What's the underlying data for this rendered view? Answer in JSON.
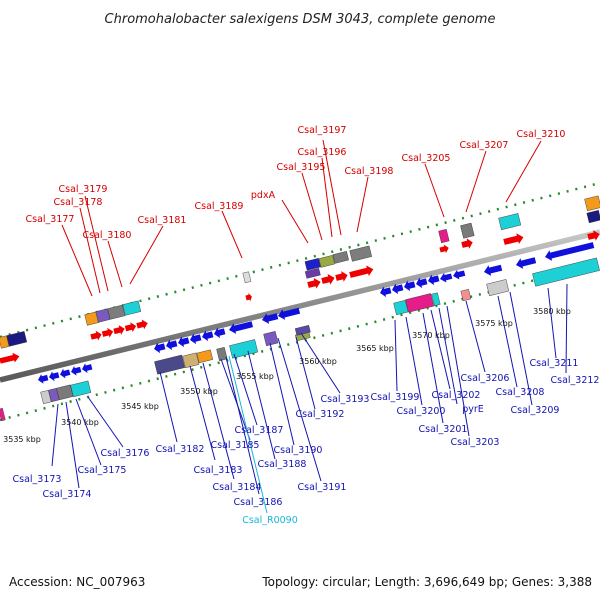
{
  "title": "Chromohalobacter salexigens DSM 3043, complete genome",
  "accession": "Accession: NC_007963",
  "summary": "Topology: circular; Length: 3,696,649 bp; Genes: 3,388",
  "scale_labels": [
    "3535 kbp",
    "3540 kbp",
    "3545 kbp",
    "3550 kbp",
    "3555 kbp",
    "3560 kbp",
    "3565 kbp",
    "3570 kbp",
    "3575 kbp",
    "3580 kbp"
  ],
  "top_labels": [
    "Csal_3177",
    "Csal_3178",
    "Csal_3179",
    "Csal_3180",
    "Csal_3181",
    "Csal_3189",
    "pdxA",
    "Csal_3195",
    "Csal_3196",
    "Csal_3197",
    "Csal_3198",
    "Csal_3205",
    "Csal_3207",
    "Csal_3210"
  ],
  "bottom_labels": [
    "Csal_3173",
    "Csal_3174",
    "Csal_3175",
    "Csal_3176",
    "Csal_3182",
    "Csal_3183",
    "Csal_3184",
    "Csal_3185",
    "Csal_3186",
    "Csal_3187",
    "Csal_3188",
    "Csal_3190",
    "Csal_3191",
    "Csal_3192",
    "Csal_3193",
    "Csal_3199",
    "Csal_3200",
    "Csal_3201",
    "Csal_3202",
    "pyrE",
    "Csal_3203",
    "Csal_3206",
    "Csal_3208",
    "Csal_3209",
    "Csal_3211",
    "Csal_3212"
  ],
  "rna_labels": [
    "Csal_R0090"
  ],
  "colors": {
    "forward_gene": "#ee0000",
    "reverse_gene": "#1010dd",
    "backbone": "#9a9a9a",
    "tick": "#2a8a2a",
    "rna": "#19b6d6"
  }
}
